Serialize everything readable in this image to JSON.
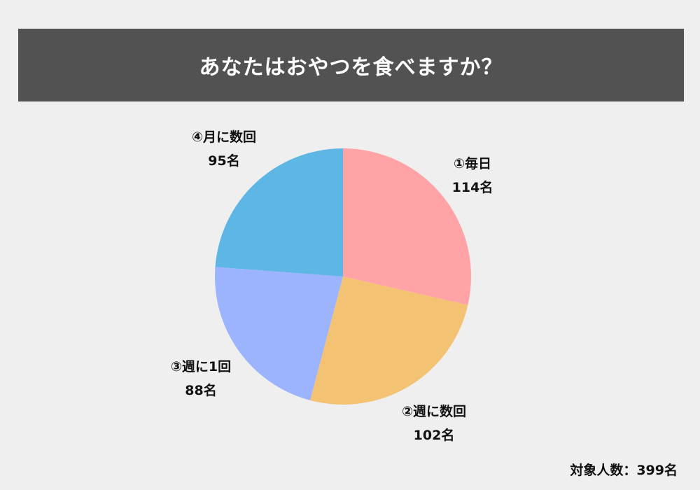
{
  "chart_data": {
    "type": "pie",
    "title": "あなたはおやつを食べますか？",
    "slices": [
      {
        "label": "①毎日",
        "value": 114,
        "value_text": "114名",
        "color": "#ffa3a6"
      },
      {
        "label": "②週に数回",
        "value": 102,
        "value_text": "102名",
        "color": "#f3c373"
      },
      {
        "label": "③週に1回",
        "value": 88,
        "value_text": "88名",
        "color": "#9cb4fd"
      },
      {
        "label": "④月に数回",
        "value": 95,
        "value_text": "95名",
        "color": "#5db6e4"
      }
    ],
    "start_angle": "12 o'clock",
    "direction": "clockwise",
    "footnote": "対象人数：399名"
  }
}
